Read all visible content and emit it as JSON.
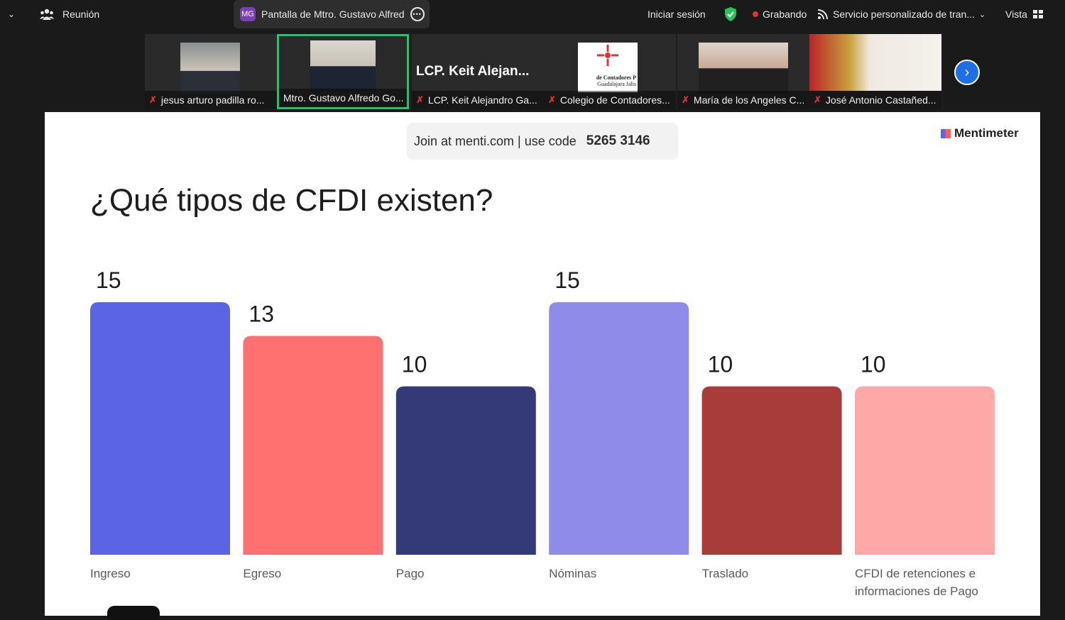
{
  "topbar": {
    "meeting_label": "Reunión",
    "share_badge": "MG",
    "share_title": "Pantalla de Mtro. Gustavo Alfred",
    "sign_in": "Iniciar sesión",
    "recording": "Grabando",
    "service": "Servicio personalizado de tran...",
    "view": "Vista"
  },
  "participants": [
    {
      "name": "jesus arturo padilla ro...",
      "kind": "video"
    },
    {
      "name": "Mtro. Gustavo Alfredo Go...",
      "kind": "video",
      "active": true
    },
    {
      "name": "LCP. Keit Alejandro Ga...",
      "kind": "avatar",
      "display": "LCP. Keit Alejan..."
    },
    {
      "name": "Colegio de Contadores...",
      "kind": "logo",
      "logo_text": [
        "de Contadores P",
        "Guadalajara Jalis"
      ]
    },
    {
      "name": "María de los Angeles C...",
      "kind": "video"
    },
    {
      "name": "José Antonio Castañed...",
      "kind": "video"
    }
  ],
  "slide": {
    "join_text": "Join at menti.com | use code",
    "code": "5265 3146",
    "brand": "Mentimeter",
    "question": "¿Qué tipos de CFDI existen?"
  },
  "chart_data": {
    "type": "bar",
    "title": "¿Qué tipos de CFDI existen?",
    "categories": [
      "Ingreso",
      "Egreso",
      "Pago",
      "Nóminas",
      "Traslado",
      "CFDI de retenciones e informaciones de Pago"
    ],
    "values": [
      15,
      13,
      10,
      15,
      10,
      10
    ],
    "ylim": [
      0,
      15
    ],
    "colors": [
      "#5b64e4",
      "#ff7070",
      "#343a78",
      "#8e8ce8",
      "#a83c3a",
      "#ffa8a8"
    ],
    "grid": false,
    "xlabel": "",
    "ylabel": ""
  }
}
